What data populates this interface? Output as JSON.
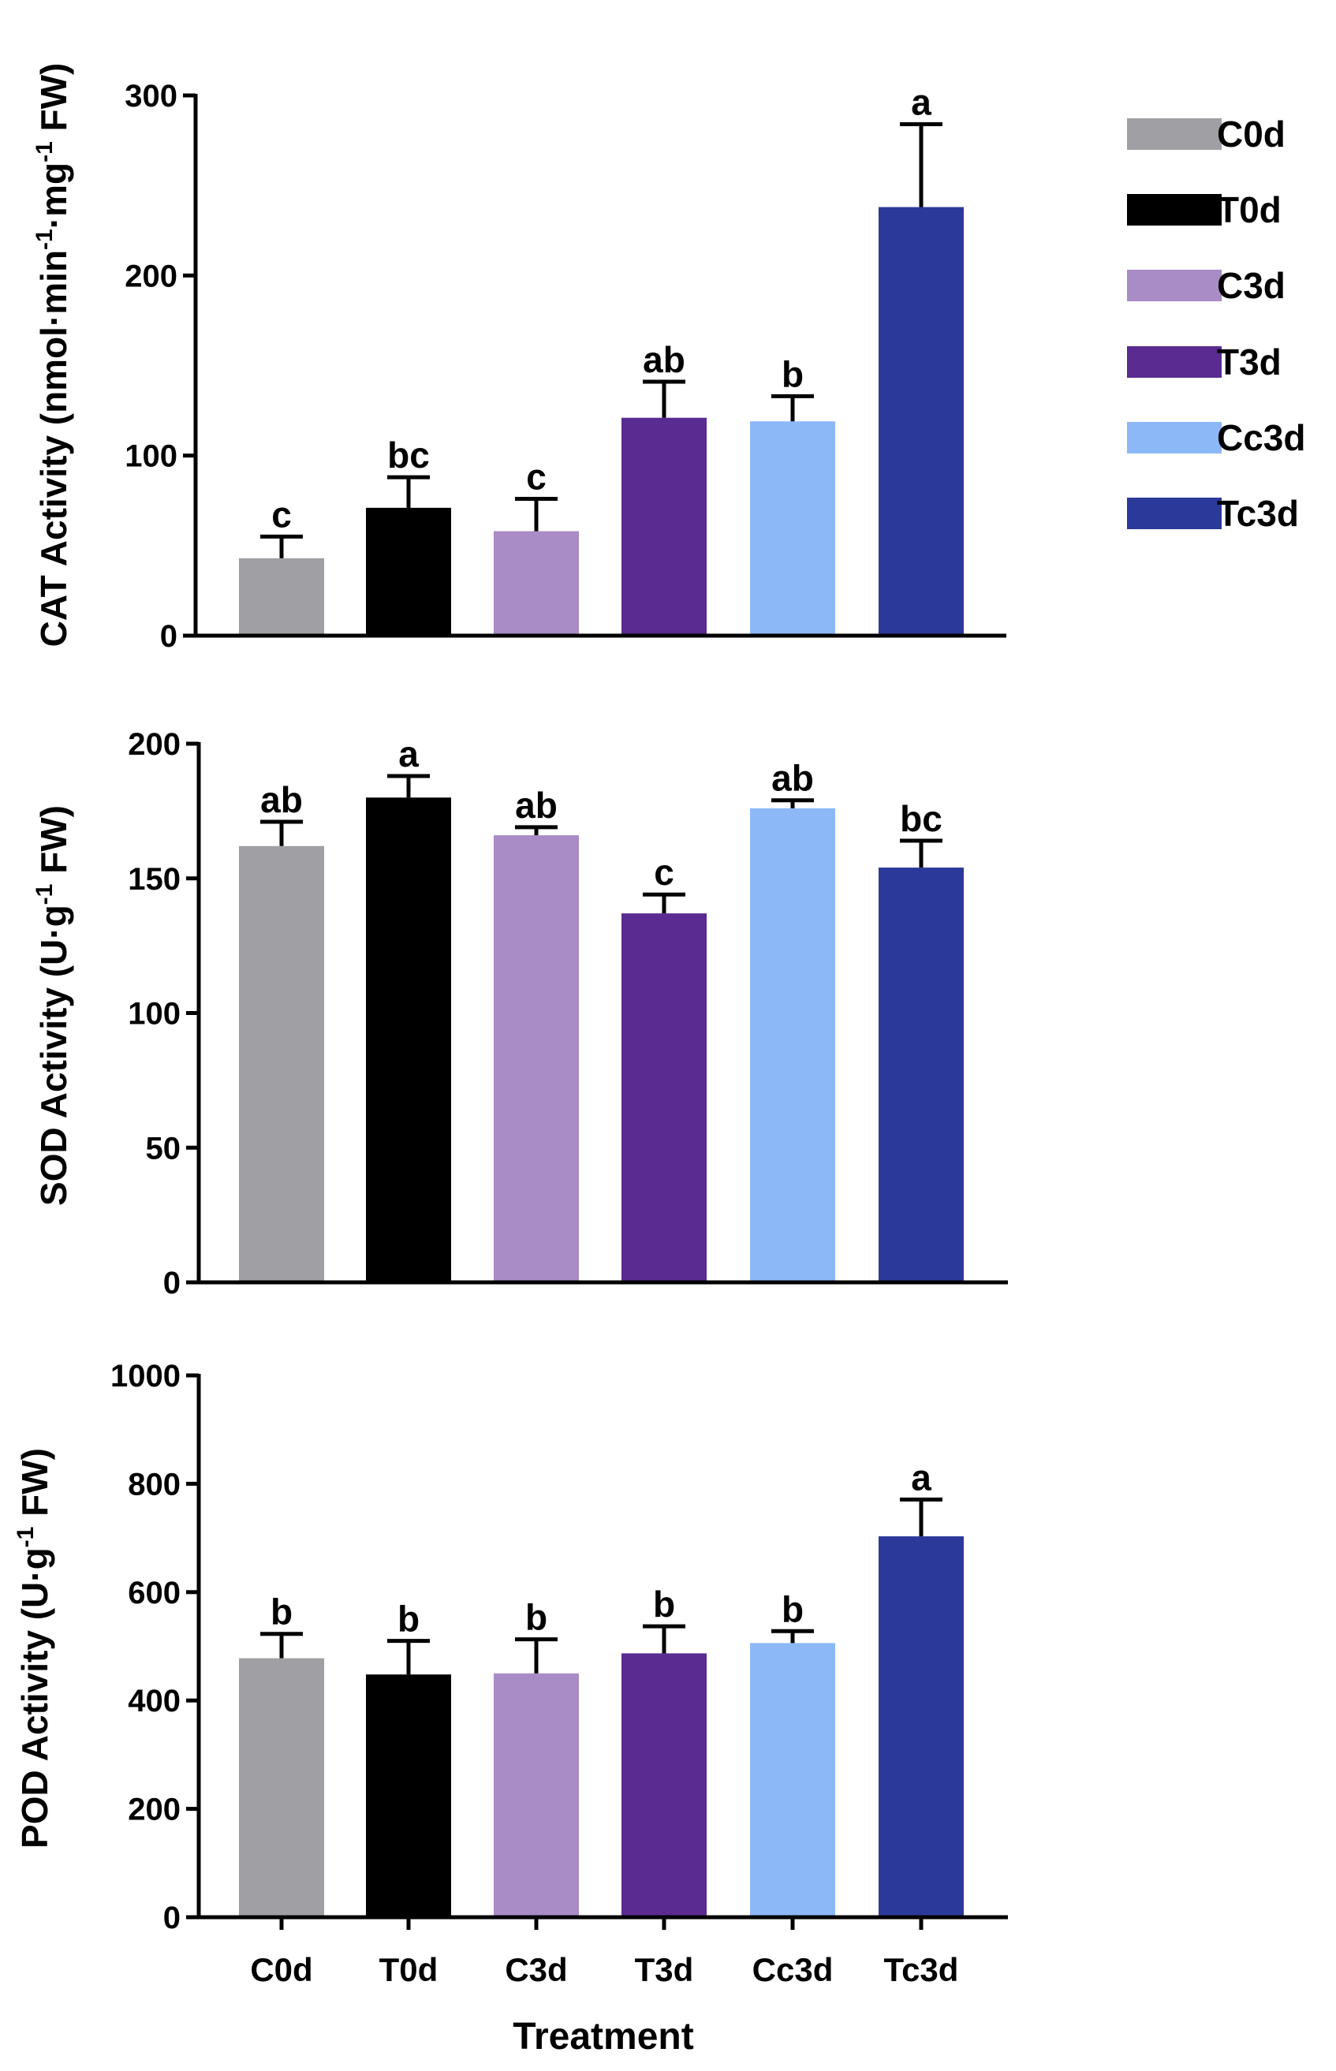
{
  "chart_data": [
    {
      "type": "bar",
      "ylabel_parts": [
        "CAT Activity (nmol·min",
        "-1",
        "·mg",
        "-1",
        " FW)"
      ],
      "ylim": [
        0,
        300
      ],
      "yticks": [
        0,
        100,
        200,
        300
      ],
      "categories": [
        "C0d",
        "T0d",
        "C3d",
        "T3d",
        "Cc3d",
        "Tc3d"
      ],
      "values": [
        43,
        71,
        58,
        121,
        119,
        238
      ],
      "errors": [
        12,
        17,
        18,
        20,
        14,
        46
      ],
      "letters": [
        "c",
        "bc",
        "c",
        "ab",
        "b",
        "a"
      ]
    },
    {
      "type": "bar",
      "ylabel_parts": [
        "SOD Activity (U·g",
        "-1",
        " FW)"
      ],
      "ylim": [
        0,
        200
      ],
      "yticks": [
        0,
        50,
        100,
        150,
        200
      ],
      "categories": [
        "C0d",
        "T0d",
        "C3d",
        "T3d",
        "Cc3d",
        "Tc3d"
      ],
      "values": [
        162,
        180,
        166,
        137,
        176,
        154
      ],
      "errors": [
        9,
        8,
        3,
        7,
        3,
        10
      ],
      "letters": [
        "ab",
        "a",
        "ab",
        "c",
        "ab",
        "bc"
      ]
    },
    {
      "type": "bar",
      "ylabel_parts": [
        "POD Activity (U·g",
        "-1",
        " FW)"
      ],
      "xlabel": "Treatment",
      "ylim": [
        0,
        1000
      ],
      "yticks": [
        0,
        200,
        400,
        600,
        800,
        1000
      ],
      "categories": [
        "C0d",
        "T0d",
        "C3d",
        "T3d",
        "Cc3d",
        "Tc3d"
      ],
      "values": [
        478,
        448,
        450,
        487,
        506,
        703
      ],
      "errors": [
        45,
        62,
        63,
        50,
        22,
        68
      ],
      "letters": [
        "b",
        "b",
        "b",
        "b",
        "b",
        "a"
      ]
    }
  ],
  "legend": {
    "placement": "top-right",
    "items": [
      {
        "label": "C0d",
        "color": "#a09fa4"
      },
      {
        "label": "T0d",
        "color": "#000000"
      },
      {
        "label": "C3d",
        "color": "#a98bc6"
      },
      {
        "label": "T3d",
        "color": "#5a2b91"
      },
      {
        "label": "Cc3d",
        "color": "#8db8f8"
      },
      {
        "label": "Tc3d",
        "color": "#2b399a"
      }
    ]
  }
}
